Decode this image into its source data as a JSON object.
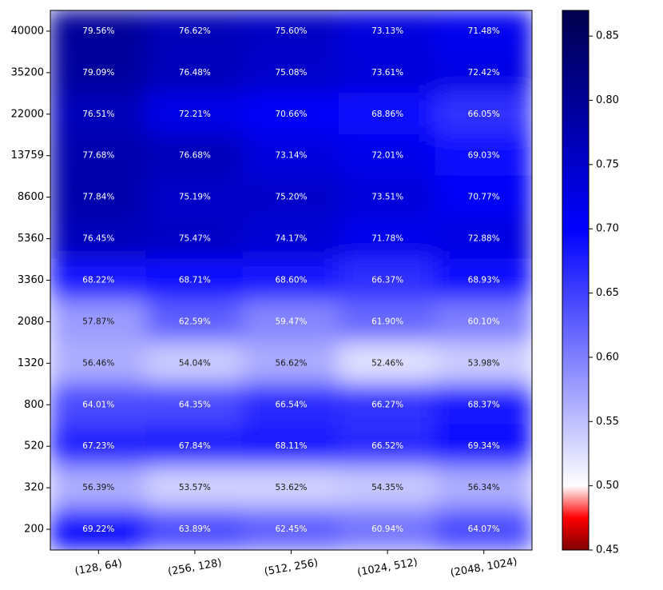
{
  "chart_data": {
    "type": "heatmap",
    "title": "",
    "xlabel": "",
    "ylabel": "",
    "x_categories": [
      "(128, 64)",
      "(256, 128)",
      "(512, 256)",
      "(1024, 512)",
      "(2048, 1024)"
    ],
    "y_categories": [
      "40000",
      "35200",
      "22000",
      "13759",
      "8600",
      "5360",
      "3360",
      "2080",
      "1320",
      "800",
      "520",
      "320",
      "200"
    ],
    "values": [
      [
        0.7956,
        0.7662,
        0.756,
        0.7313,
        0.7148
      ],
      [
        0.7909,
        0.7648,
        0.7508,
        0.7361,
        0.7242
      ],
      [
        0.7651,
        0.7221,
        0.7066,
        0.6886,
        0.6605
      ],
      [
        0.7768,
        0.7668,
        0.7314,
        0.7201,
        0.6903
      ],
      [
        0.7784,
        0.7519,
        0.752,
        0.7351,
        0.7077
      ],
      [
        0.7645,
        0.7547,
        0.7417,
        0.7178,
        0.7288
      ],
      [
        0.6822,
        0.6871,
        0.686,
        0.6637,
        0.6893
      ],
      [
        0.5787,
        0.6259,
        0.5947,
        0.619,
        0.601
      ],
      [
        0.5646,
        0.5404,
        0.5662,
        0.5246,
        0.5398
      ],
      [
        0.6401,
        0.6435,
        0.6654,
        0.6627,
        0.6837
      ],
      [
        0.6723,
        0.6784,
        0.6811,
        0.6652,
        0.6934
      ],
      [
        0.5639,
        0.5357,
        0.5362,
        0.5435,
        0.5634
      ],
      [
        0.6922,
        0.6389,
        0.6245,
        0.6094,
        0.6407
      ]
    ],
    "cell_labels": [
      [
        "79.56%",
        "76.62%",
        "75.60%",
        "73.13%",
        "71.48%"
      ],
      [
        "79.09%",
        "76.48%",
        "75.08%",
        "73.61%",
        "72.42%"
      ],
      [
        "76.51%",
        "72.21%",
        "70.66%",
        "68.86%",
        "66.05%"
      ],
      [
        "77.68%",
        "76.68%",
        "73.14%",
        "72.01%",
        "69.03%"
      ],
      [
        "77.84%",
        "75.19%",
        "75.20%",
        "73.51%",
        "70.77%"
      ],
      [
        "76.45%",
        "75.47%",
        "74.17%",
        "71.78%",
        "72.88%"
      ],
      [
        "68.22%",
        "68.71%",
        "68.60%",
        "66.37%",
        "68.93%"
      ],
      [
        "57.87%",
        "62.59%",
        "59.47%",
        "61.90%",
        "60.10%"
      ],
      [
        "56.46%",
        "54.04%",
        "56.62%",
        "52.46%",
        "53.98%"
      ],
      [
        "64.01%",
        "64.35%",
        "66.54%",
        "66.27%",
        "68.37%"
      ],
      [
        "67.23%",
        "67.84%",
        "68.11%",
        "66.52%",
        "69.34%"
      ],
      [
        "56.39%",
        "53.57%",
        "53.62%",
        "54.35%",
        "56.34%"
      ],
      [
        "69.22%",
        "63.89%",
        "62.45%",
        "60.94%",
        "64.07%"
      ]
    ],
    "colorbar": {
      "min": 0.45,
      "max": 0.87,
      "ticks": [
        0.45,
        0.5,
        0.55,
        0.6,
        0.65,
        0.7,
        0.75,
        0.8,
        0.85
      ],
      "tick_labels": [
        "0.45",
        "0.50",
        "0.55",
        "0.60",
        "0.65",
        "0.70",
        "0.75",
        "0.80",
        "0.85"
      ],
      "colormap": "seismic_r"
    },
    "colormap_stops": [
      {
        "value": 0.45,
        "color": "#7f0000"
      },
      {
        "value": 0.475,
        "color": "#ff0000"
      },
      {
        "value": 0.5,
        "color": "#ffffff"
      },
      {
        "value": 0.7,
        "color": "#0000ff"
      },
      {
        "value": 0.87,
        "color": "#00004c"
      }
    ],
    "label_color_dark": "#1a1a1a",
    "label_color_light": "#ffffff",
    "dark_text_threshold": 0.58,
    "interpolation": "smooth",
    "grid": false,
    "legend": "colorbar-right"
  }
}
